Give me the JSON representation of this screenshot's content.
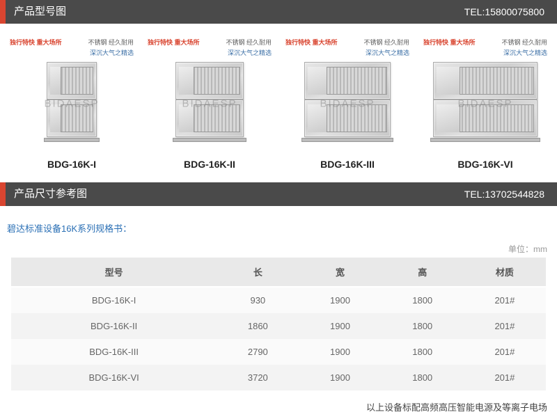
{
  "section1": {
    "title": "产品型号图",
    "tel": "TEL:15800075800"
  },
  "watermark": "BIDAESP",
  "tagline": {
    "left_prefix": "不锈钢",
    "left_suffix": "经久耐用",
    "red": "独行特快 重大场所",
    "blue": "深沉大气之精选"
  },
  "products": [
    {
      "label": "BDG-16K-I",
      "stack_w": 72
    },
    {
      "label": "BDG-16K-II",
      "stack_w": 98
    },
    {
      "label": "BDG-16K-III",
      "stack_w": 124
    },
    {
      "label": "BDG-16K-VI",
      "stack_w": 150
    }
  ],
  "section2": {
    "title": "产品尺寸参考图",
    "tel": "TEL:13702544828"
  },
  "spec_intro": "碧达标准设备16K系列规格书：",
  "unit_label": "单位：mm",
  "table": {
    "headers": [
      "型号",
      "长",
      "宽",
      "高",
      "材质"
    ],
    "rows": [
      [
        "BDG-16K-I",
        "930",
        "1900",
        "1800",
        "201#"
      ],
      [
        "BDG-16K-II",
        "1860",
        "1900",
        "1800",
        "201#"
      ],
      [
        "BDG-16K-III",
        "2790",
        "1900",
        "1800",
        "201#"
      ],
      [
        "BDG-16K-VI",
        "3720",
        "1900",
        "1800",
        "201#"
      ]
    ]
  },
  "footer_note": "以上设备标配高频高压智能电源及等离子电场"
}
